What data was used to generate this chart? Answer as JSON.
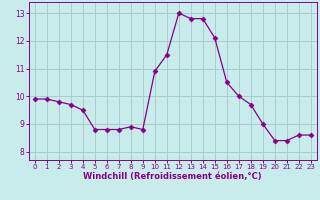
{
  "x": [
    0,
    1,
    2,
    3,
    4,
    5,
    6,
    7,
    8,
    9,
    10,
    11,
    12,
    13,
    14,
    15,
    16,
    17,
    18,
    19,
    20,
    21,
    22,
    23
  ],
  "y": [
    9.9,
    9.9,
    9.8,
    9.7,
    9.5,
    8.8,
    8.8,
    8.8,
    8.9,
    8.8,
    10.9,
    11.5,
    13.0,
    12.8,
    12.8,
    12.1,
    10.5,
    10.0,
    9.7,
    9.0,
    8.4,
    8.4,
    8.6,
    8.6
  ],
  "line_color": "#880088",
  "marker": "D",
  "marker_size": 2.5,
  "bg_color": "#c8ecec",
  "grid_color": "#aacccc",
  "xlabel": "Windchill (Refroidissement éolien,°C)",
  "xlabel_color": "#880088",
  "tick_color": "#880088",
  "ylim": [
    7.7,
    13.4
  ],
  "xlim": [
    -0.5,
    23.5
  ],
  "yticks": [
    8,
    9,
    10,
    11,
    12,
    13
  ],
  "xticks": [
    0,
    1,
    2,
    3,
    4,
    5,
    6,
    7,
    8,
    9,
    10,
    11,
    12,
    13,
    14,
    15,
    16,
    17,
    18,
    19,
    20,
    21,
    22,
    23
  ]
}
